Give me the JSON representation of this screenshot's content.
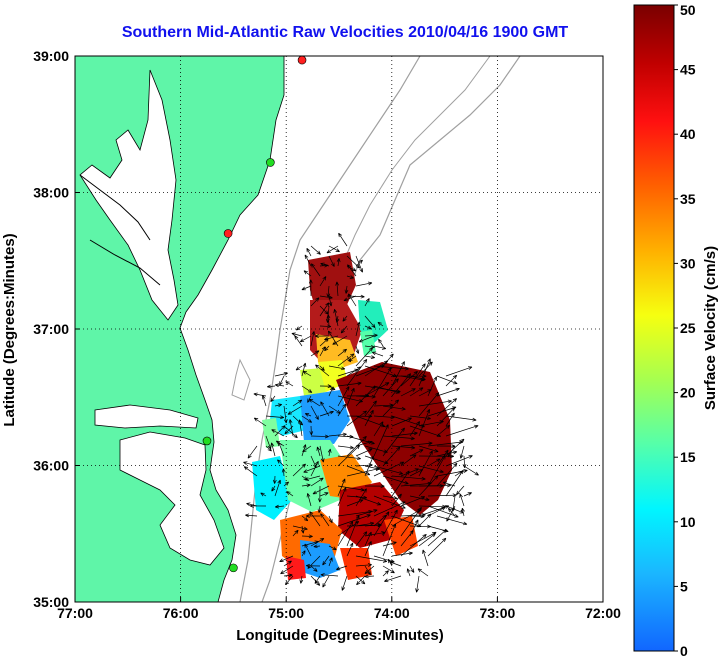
{
  "title": "Southern Mid-Atlantic Raw Velocities 2010/04/16 1900 GMT",
  "colors": {
    "land": "#5ff5a8",
    "title": "#1111ee",
    "contour": "#a0a0a0"
  },
  "map": {
    "xlabel": "Longitude (Degrees:Minutes)",
    "ylabel": "Latitude (Degrees:Minutes)",
    "lon_range": [
      -77,
      -72
    ],
    "lat_range": [
      35,
      39
    ],
    "lon_ticks": [
      {
        "value": -77,
        "label": "77:00"
      },
      {
        "value": -76,
        "label": "76:00"
      },
      {
        "value": -75,
        "label": "75:00"
      },
      {
        "value": -74,
        "label": "74:00"
      },
      {
        "value": -73,
        "label": "73:00"
      },
      {
        "value": -72,
        "label": "72:00"
      }
    ],
    "lat_ticks": [
      {
        "value": 35,
        "label": "35:00"
      },
      {
        "value": 36,
        "label": "36:00"
      },
      {
        "value": 37,
        "label": "37:00"
      },
      {
        "value": 38,
        "label": "38:00"
      },
      {
        "value": 39,
        "label": "39:00"
      }
    ],
    "grid": true,
    "stations": [
      {
        "lon": -74.85,
        "lat": 38.97,
        "color": "#ff2020"
      },
      {
        "lon": -75.15,
        "lat": 38.22,
        "color": "#22dd22"
      },
      {
        "lon": -75.55,
        "lat": 37.7,
        "color": "#ff2020"
      },
      {
        "lon": -75.75,
        "lat": 36.18,
        "color": "#22dd22"
      },
      {
        "lon": -75.5,
        "lat": 35.25,
        "color": "#22dd22"
      }
    ]
  },
  "colorbar": {
    "label": "Surface Velocity (cm/s)",
    "min": 0,
    "max": 50,
    "ticks": [
      {
        "value": 0,
        "label": "0"
      },
      {
        "value": 5,
        "label": "5"
      },
      {
        "value": 10,
        "label": "10"
      },
      {
        "value": 15,
        "label": "15"
      },
      {
        "value": 20,
        "label": "20"
      },
      {
        "value": 25,
        "label": "25"
      },
      {
        "value": 30,
        "label": "30"
      },
      {
        "value": 35,
        "label": "35"
      },
      {
        "value": 40,
        "label": "40"
      },
      {
        "value": 45,
        "label": "45"
      },
      {
        "value": 50,
        "label": "50"
      }
    ]
  }
}
